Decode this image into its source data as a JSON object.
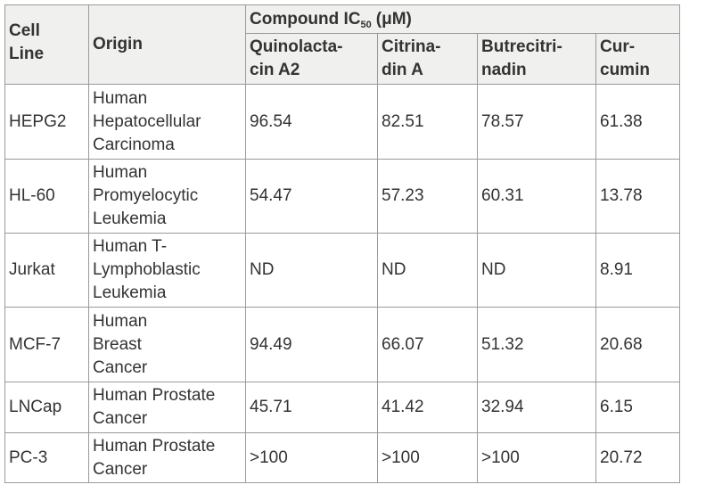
{
  "header": {
    "cell_line": [
      "Cell",
      "Line"
    ],
    "origin": [
      "Origin"
    ],
    "group": {
      "prefix": "Compound IC",
      "sub": "50",
      "suffix": "(μM)"
    },
    "compounds": [
      [
        "Quinolacta-",
        "cin A2"
      ],
      [
        "Citrina-",
        "din A"
      ],
      [
        "Butrecitri-",
        "nadin"
      ],
      [
        "Cur-",
        "cumin"
      ]
    ]
  },
  "rows": [
    {
      "cell_line": [
        "HEPG2"
      ],
      "origin": [
        "Human",
        "Hepatocellular",
        "Carcinoma"
      ],
      "values": [
        96.54,
        82.51,
        78.57,
        61.38
      ]
    },
    {
      "cell_line": [
        "HL-60"
      ],
      "origin": [
        "Human",
        "Promyelocytic",
        "Leukemia"
      ],
      "values": [
        54.47,
        57.23,
        60.31,
        13.78
      ]
    },
    {
      "cell_line": [
        "Jurkat"
      ],
      "origin": [
        "Human T-",
        "Lymphoblastic",
        "Leukemia"
      ],
      "values": [
        "ND",
        "ND",
        "ND",
        8.91
      ]
    },
    {
      "cell_line": [
        "MCF-7"
      ],
      "origin": [
        "Human",
        "Breast",
        "Cancer"
      ],
      "values": [
        94.49,
        66.07,
        51.32,
        20.68
      ]
    },
    {
      "cell_line": [
        "LNCap"
      ],
      "origin": [
        "Human Prostate",
        "Cancer"
      ],
      "values": [
        45.71,
        41.42,
        32.94,
        6.15
      ]
    },
    {
      "cell_line": [
        "PC-3"
      ],
      "origin": [
        "Human Prostate",
        "Cancer"
      ],
      "values": [
        ">100",
        ">100",
        ">100",
        20.72
      ]
    }
  ]
}
